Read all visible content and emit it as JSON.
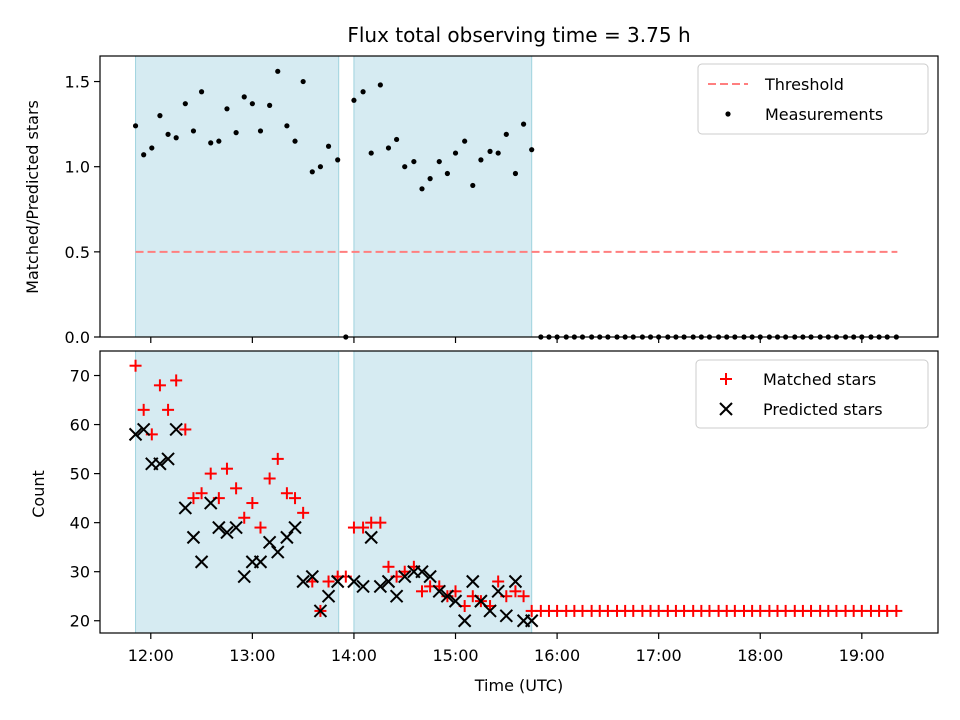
{
  "chart_data": {
    "type": "scatter",
    "title": "Flux total observing time = 3.75 h",
    "xlabel": "Time (UTC)",
    "x_unit": "hours (UTC)",
    "xlim": [
      11.5,
      19.75
    ],
    "x_ticks": [
      {
        "value": 12,
        "label": "12:00"
      },
      {
        "value": 13,
        "label": "13:00"
      },
      {
        "value": 14,
        "label": "14:00"
      },
      {
        "value": 15,
        "label": "15:00"
      },
      {
        "value": 16,
        "label": "16:00"
      },
      {
        "value": 17,
        "label": "17:00"
      },
      {
        "value": 18,
        "label": "18:00"
      },
      {
        "value": 19,
        "label": "19:00"
      }
    ],
    "shaded_intervals": [
      [
        11.85,
        13.85
      ],
      [
        14.0,
        15.75
      ]
    ],
    "shade_color": "#add8e6",
    "top": {
      "ylabel": "Matched/Predicted stars",
      "ylim": [
        0,
        1.65
      ],
      "y_ticks": [
        {
          "value": 0.0,
          "label": "0.0"
        },
        {
          "value": 0.5,
          "label": "0.5"
        },
        {
          "value": 1.0,
          "label": "1.0"
        },
        {
          "value": 1.5,
          "label": "1.5"
        }
      ],
      "threshold": {
        "name": "Threshold",
        "value": 0.5,
        "x_start": 11.85,
        "x_end": 19.35,
        "color": "#ff7f7f"
      },
      "measurements": {
        "name": "Measurements",
        "color": "#000000",
        "points": [
          [
            11.85,
            1.24
          ],
          [
            11.93,
            1.07
          ],
          [
            12.01,
            1.11
          ],
          [
            12.09,
            1.3
          ],
          [
            12.17,
            1.19
          ],
          [
            12.25,
            1.17
          ],
          [
            12.34,
            1.37
          ],
          [
            12.42,
            1.21
          ],
          [
            12.5,
            1.44
          ],
          [
            12.59,
            1.14
          ],
          [
            12.67,
            1.15
          ],
          [
            12.75,
            1.34
          ],
          [
            12.84,
            1.2
          ],
          [
            12.92,
            1.41
          ],
          [
            13.0,
            1.37
          ],
          [
            13.08,
            1.21
          ],
          [
            13.17,
            1.36
          ],
          [
            13.25,
            1.56
          ],
          [
            13.34,
            1.24
          ],
          [
            13.42,
            1.15
          ],
          [
            13.5,
            1.5
          ],
          [
            13.59,
            0.97
          ],
          [
            13.67,
            1.0
          ],
          [
            13.75,
            1.12
          ],
          [
            13.84,
            1.04
          ],
          [
            13.92,
            0.0
          ],
          [
            14.0,
            1.39
          ],
          [
            14.09,
            1.44
          ],
          [
            14.17,
            1.08
          ],
          [
            14.26,
            1.48
          ],
          [
            14.34,
            1.11
          ],
          [
            14.42,
            1.16
          ],
          [
            14.5,
            1.0
          ],
          [
            14.59,
            1.03
          ],
          [
            14.67,
            0.87
          ],
          [
            14.75,
            0.93
          ],
          [
            14.84,
            1.03
          ],
          [
            14.92,
            0.96
          ],
          [
            15.0,
            1.08
          ],
          [
            15.09,
            1.15
          ],
          [
            15.17,
            0.89
          ],
          [
            15.25,
            1.04
          ],
          [
            15.34,
            1.09
          ],
          [
            15.42,
            1.08
          ],
          [
            15.5,
            1.19
          ],
          [
            15.59,
            0.96
          ],
          [
            15.67,
            1.25
          ],
          [
            15.75,
            1.1
          ],
          [
            15.84,
            0.0
          ],
          [
            15.92,
            0.0
          ],
          [
            16.0,
            0.0
          ],
          [
            16.09,
            0.0
          ],
          [
            16.17,
            0.0
          ],
          [
            16.25,
            0.0
          ],
          [
            16.34,
            0.0
          ],
          [
            16.42,
            0.0
          ],
          [
            16.5,
            0.0
          ],
          [
            16.59,
            0.0
          ],
          [
            16.67,
            0.0
          ],
          [
            16.75,
            0.0
          ],
          [
            16.84,
            0.0
          ],
          [
            16.92,
            0.0
          ],
          [
            17.0,
            0.0
          ],
          [
            17.09,
            0.0
          ],
          [
            17.17,
            0.0
          ],
          [
            17.25,
            0.0
          ],
          [
            17.34,
            0.0
          ],
          [
            17.42,
            0.0
          ],
          [
            17.5,
            0.0
          ],
          [
            17.59,
            0.0
          ],
          [
            17.67,
            0.0
          ],
          [
            17.75,
            0.0
          ],
          [
            17.84,
            0.0
          ],
          [
            17.92,
            0.0
          ],
          [
            18.0,
            0.0
          ],
          [
            18.09,
            0.0
          ],
          [
            18.17,
            0.0
          ],
          [
            18.25,
            0.0
          ],
          [
            18.34,
            0.0
          ],
          [
            18.42,
            0.0
          ],
          [
            18.5,
            0.0
          ],
          [
            18.59,
            0.0
          ],
          [
            18.67,
            0.0
          ],
          [
            18.75,
            0.0
          ],
          [
            18.84,
            0.0
          ],
          [
            18.92,
            0.0
          ],
          [
            19.0,
            0.0
          ],
          [
            19.09,
            0.0
          ],
          [
            19.17,
            0.0
          ],
          [
            19.25,
            0.0
          ],
          [
            19.34,
            0.0
          ]
        ]
      },
      "legend_position": "upper-right"
    },
    "bottom": {
      "ylabel": "Count",
      "ylim": [
        17.5,
        75
      ],
      "y_ticks": [
        {
          "value": 20,
          "label": "20"
        },
        {
          "value": 30,
          "label": "30"
        },
        {
          "value": 40,
          "label": "40"
        },
        {
          "value": 50,
          "label": "50"
        },
        {
          "value": 60,
          "label": "60"
        },
        {
          "value": 70,
          "label": "70"
        }
      ],
      "series": [
        {
          "name": "Matched stars",
          "marker": "plus",
          "color": "#ff0000",
          "points": [
            [
              11.85,
              72
            ],
            [
              11.93,
              63
            ],
            [
              12.01,
              58
            ],
            [
              12.09,
              68
            ],
            [
              12.17,
              63
            ],
            [
              12.25,
              69
            ],
            [
              12.34,
              59
            ],
            [
              12.42,
              45
            ],
            [
              12.5,
              46
            ],
            [
              12.59,
              50
            ],
            [
              12.67,
              45
            ],
            [
              12.75,
              51
            ],
            [
              12.84,
              47
            ],
            [
              12.92,
              41
            ],
            [
              13.0,
              44
            ],
            [
              13.08,
              39
            ],
            [
              13.17,
              49
            ],
            [
              13.25,
              53
            ],
            [
              13.34,
              46
            ],
            [
              13.42,
              45
            ],
            [
              13.5,
              42
            ],
            [
              13.59,
              28
            ],
            [
              13.67,
              22
            ],
            [
              13.75,
              28
            ],
            [
              13.84,
              29
            ],
            [
              13.92,
              29
            ],
            [
              14.0,
              39
            ],
            [
              14.09,
              39
            ],
            [
              14.17,
              40
            ],
            [
              14.26,
              40
            ],
            [
              14.34,
              31
            ],
            [
              14.42,
              29
            ],
            [
              14.5,
              30
            ],
            [
              14.59,
              31
            ],
            [
              14.67,
              26
            ],
            [
              14.75,
              27
            ],
            [
              14.84,
              27
            ],
            [
              14.92,
              25
            ],
            [
              15.0,
              26
            ],
            [
              15.09,
              23
            ],
            [
              15.17,
              25
            ],
            [
              15.25,
              24
            ],
            [
              15.34,
              23
            ],
            [
              15.42,
              28
            ],
            [
              15.5,
              25
            ],
            [
              15.59,
              26
            ],
            [
              15.67,
              25
            ],
            [
              15.75,
              22
            ],
            [
              15.84,
              22
            ],
            [
              15.92,
              22
            ],
            [
              16.0,
              22
            ],
            [
              16.09,
              22
            ],
            [
              16.17,
              22
            ],
            [
              16.25,
              22
            ],
            [
              16.34,
              22
            ],
            [
              16.42,
              22
            ],
            [
              16.5,
              22
            ],
            [
              16.59,
              22
            ],
            [
              16.67,
              22
            ],
            [
              16.75,
              22
            ],
            [
              16.84,
              22
            ],
            [
              16.92,
              22
            ],
            [
              17.0,
              22
            ],
            [
              17.09,
              22
            ],
            [
              17.17,
              22
            ],
            [
              17.25,
              22
            ],
            [
              17.34,
              22
            ],
            [
              17.42,
              22
            ],
            [
              17.5,
              22
            ],
            [
              17.59,
              22
            ],
            [
              17.67,
              22
            ],
            [
              17.75,
              22
            ],
            [
              17.84,
              22
            ],
            [
              17.92,
              22
            ],
            [
              18.0,
              22
            ],
            [
              18.09,
              22
            ],
            [
              18.17,
              22
            ],
            [
              18.25,
              22
            ],
            [
              18.34,
              22
            ],
            [
              18.42,
              22
            ],
            [
              18.5,
              22
            ],
            [
              18.59,
              22
            ],
            [
              18.67,
              22
            ],
            [
              18.75,
              22
            ],
            [
              18.84,
              22
            ],
            [
              18.92,
              22
            ],
            [
              19.0,
              22
            ],
            [
              19.09,
              22
            ],
            [
              19.17,
              22
            ],
            [
              19.25,
              22
            ],
            [
              19.34,
              22
            ]
          ]
        },
        {
          "name": "Predicted stars",
          "marker": "x",
          "color": "#000000",
          "points": [
            [
              11.85,
              58
            ],
            [
              11.93,
              59
            ],
            [
              12.01,
              52
            ],
            [
              12.09,
              52
            ],
            [
              12.17,
              53
            ],
            [
              12.25,
              59
            ],
            [
              12.34,
              43
            ],
            [
              12.42,
              37
            ],
            [
              12.5,
              32
            ],
            [
              12.59,
              44
            ],
            [
              12.67,
              39
            ],
            [
              12.75,
              38
            ],
            [
              12.84,
              39
            ],
            [
              12.92,
              29
            ],
            [
              13.0,
              32
            ],
            [
              13.08,
              32
            ],
            [
              13.17,
              36
            ],
            [
              13.25,
              34
            ],
            [
              13.34,
              37
            ],
            [
              13.42,
              39
            ],
            [
              13.5,
              28
            ],
            [
              13.59,
              29
            ],
            [
              13.67,
              22
            ],
            [
              13.75,
              25
            ],
            [
              13.84,
              28
            ],
            [
              14.0,
              28
            ],
            [
              14.09,
              27
            ],
            [
              14.17,
              37
            ],
            [
              14.26,
              27
            ],
            [
              14.34,
              28
            ],
            [
              14.42,
              25
            ],
            [
              14.5,
              29
            ],
            [
              14.59,
              30
            ],
            [
              14.67,
              30
            ],
            [
              14.75,
              29
            ],
            [
              14.84,
              26
            ],
            [
              14.92,
              25
            ],
            [
              15.0,
              24
            ],
            [
              15.09,
              20
            ],
            [
              15.17,
              28
            ],
            [
              15.25,
              24
            ],
            [
              15.34,
              22
            ],
            [
              15.42,
              26
            ],
            [
              15.5,
              21
            ],
            [
              15.59,
              28
            ],
            [
              15.67,
              20
            ],
            [
              15.75,
              20
            ]
          ]
        }
      ],
      "legend_position": "upper-right"
    }
  }
}
